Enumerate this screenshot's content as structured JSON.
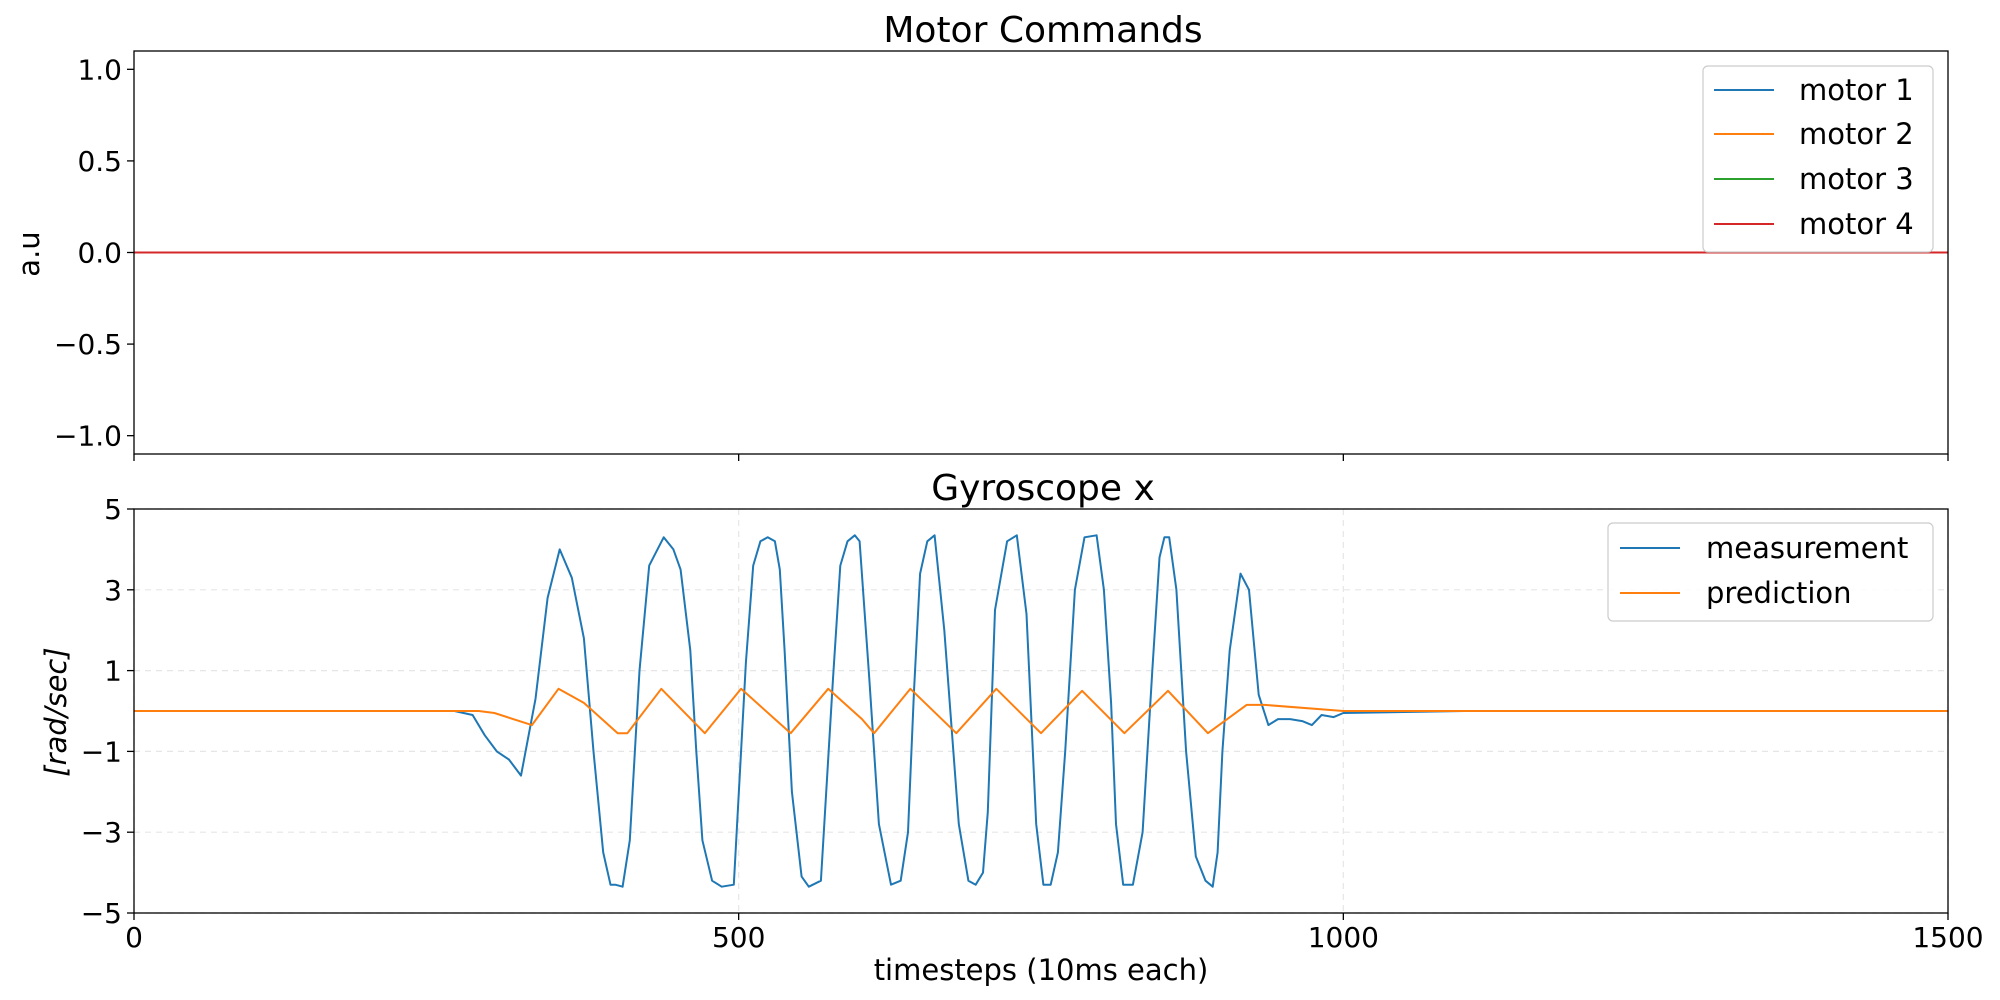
{
  "chart_data": [
    {
      "type": "line",
      "title": "Motor Commands",
      "xlabel": "",
      "ylabel": "a.u",
      "xlim": [
        0,
        1500
      ],
      "ylim": [
        -1.1,
        1.1
      ],
      "yticks": [
        1.0,
        0.5,
        0.0,
        -0.5,
        -1.0
      ],
      "ytick_labels": [
        "1.0",
        "0.5",
        "0.0",
        "−0.5",
        "−1.0"
      ],
      "xticks": [
        0,
        500,
        1000,
        1500
      ],
      "grid": false,
      "legend_position": "top-right",
      "series": [
        {
          "name": "motor 1",
          "color": "#1f77b4",
          "x": [
            0,
            1500
          ],
          "values": [
            0,
            0
          ]
        },
        {
          "name": "motor 2",
          "color": "#ff7f0e",
          "x": [
            0,
            1500
          ],
          "values": [
            0,
            0
          ]
        },
        {
          "name": "motor 3",
          "color": "#2ca02c",
          "x": [
            0,
            1500
          ],
          "values": [
            0,
            0
          ]
        },
        {
          "name": "motor 4",
          "color": "#d62728",
          "x": [
            0,
            1500
          ],
          "values": [
            0,
            0
          ]
        }
      ]
    },
    {
      "type": "line",
      "title": "Gyroscope x",
      "xlabel": "timesteps (10ms each)",
      "ylabel": "[rad/sec]",
      "xlim": [
        0,
        1500
      ],
      "ylim": [
        -5,
        5
      ],
      "yticks": [
        5,
        3,
        1,
        -1,
        -3,
        -5
      ],
      "ytick_labels": [
        "5",
        "3",
        "1",
        "−1",
        "−3",
        "−5"
      ],
      "xticks": [
        0,
        500,
        1000,
        1500
      ],
      "xtick_labels": [
        "0",
        "500",
        "1000",
        "1500"
      ],
      "grid": true,
      "legend_position": "top-right",
      "series": [
        {
          "name": "measurement",
          "color": "#1f77b4",
          "x": [
            0,
            265,
            280,
            290,
            300,
            310,
            320,
            332,
            342,
            352,
            362,
            372,
            380,
            388,
            394,
            398,
            404,
            410,
            418,
            426,
            438,
            446,
            452,
            460,
            465,
            470,
            478,
            486,
            496,
            506,
            512,
            518,
            524,
            530,
            534,
            538,
            544,
            552,
            558,
            568,
            578,
            584,
            590,
            596,
            600,
            608,
            616,
            626,
            634,
            640,
            645,
            650,
            656,
            662,
            670,
            682,
            690,
            696,
            702,
            706,
            712,
            722,
            730,
            738,
            746,
            752,
            758,
            764,
            770,
            778,
            786,
            796,
            802,
            808,
            812,
            818,
            826,
            834,
            842,
            848,
            852,
            856,
            862,
            870,
            878,
            886,
            892,
            896,
            900,
            906,
            915,
            922,
            930,
            938,
            946,
            956,
            966,
            974,
            982,
            992,
            1000,
            1100,
            1500
          ],
          "values": [
            0,
            0,
            -0.1,
            -0.6,
            -1.0,
            -1.2,
            -1.6,
            0.3,
            2.8,
            4.0,
            3.3,
            1.8,
            -1.0,
            -3.5,
            -4.3,
            -4.3,
            -4.35,
            -3.2,
            1.0,
            3.6,
            4.3,
            4.0,
            3.5,
            1.5,
            -1.0,
            -3.2,
            -4.2,
            -4.35,
            -4.3,
            1.2,
            3.6,
            4.2,
            4.3,
            4.2,
            3.5,
            1.5,
            -2.0,
            -4.1,
            -4.35,
            -4.2,
            0.8,
            3.6,
            4.2,
            4.35,
            4.2,
            0.8,
            -2.8,
            -4.3,
            -4.2,
            -3.0,
            0.5,
            3.4,
            4.2,
            4.35,
            2.0,
            -2.8,
            -4.2,
            -4.3,
            -4.0,
            -2.5,
            2.5,
            4.2,
            4.35,
            2.4,
            -2.8,
            -4.3,
            -4.3,
            -3.5,
            -1.0,
            3.0,
            4.3,
            4.35,
            3.0,
            0.2,
            -2.8,
            -4.3,
            -4.3,
            -3.0,
            1.0,
            3.8,
            4.3,
            4.3,
            3.0,
            -1.0,
            -3.6,
            -4.2,
            -4.35,
            -3.5,
            -1.0,
            1.5,
            3.4,
            3.0,
            0.4,
            -0.35,
            -0.2,
            -0.2,
            -0.25,
            -0.35,
            -0.1,
            -0.15,
            -0.05,
            0.0,
            0.0
          ]
        },
        {
          "name": "prediction",
          "color": "#ff7f0e",
          "x": [
            0,
            265,
            285,
            298,
            329,
            351,
            372,
            400,
            408,
            436,
            472,
            502,
            530,
            543,
            574,
            602,
            612,
            642,
            680,
            713,
            750,
            784,
            819,
            855,
            888,
            920,
            935,
            1000,
            1500
          ],
          "values": [
            0,
            0,
            0,
            -0.05,
            -0.35,
            0.55,
            0.2,
            -0.55,
            -0.55,
            0.55,
            -0.55,
            0.55,
            -0.2,
            -0.55,
            0.55,
            -0.2,
            -0.55,
            0.55,
            -0.55,
            0.55,
            -0.55,
            0.5,
            -0.55,
            0.5,
            -0.55,
            0.15,
            0.15,
            0.0,
            0.0
          ]
        }
      ]
    }
  ]
}
